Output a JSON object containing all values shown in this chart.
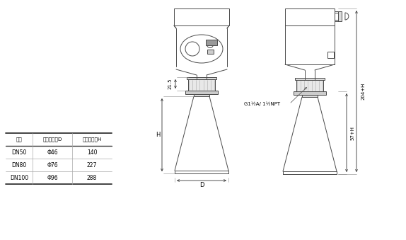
{
  "bg_color": "#ffffff",
  "line_color": "#4a4a4a",
  "table": {
    "headers": [
      "法兰",
      "喇叭口直径D",
      "喇叭口高度H"
    ],
    "rows": [
      [
        "DN50",
        "Φ46",
        "140"
      ],
      [
        "DN80",
        "Φ76",
        "227"
      ],
      [
        "DN100",
        "Φ96",
        "288"
      ]
    ]
  },
  "annotations": {
    "dim_215": "21.5",
    "dim_H_left": "H",
    "dim_D": "D",
    "dim_57H": "57+H",
    "dim_204H": "204+H",
    "label_thread": "G1½A/ 1½NPT"
  }
}
